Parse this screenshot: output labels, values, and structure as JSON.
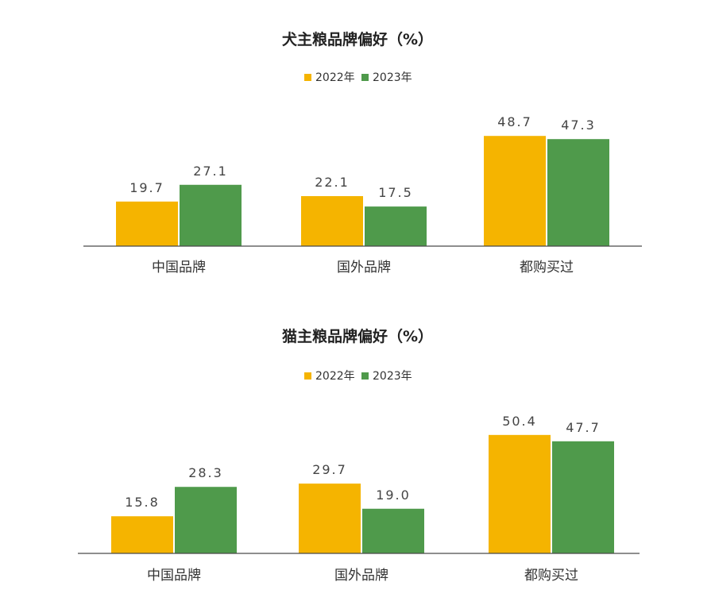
{
  "colors": {
    "y2022": "#f5b400",
    "y2023": "#4f9a4b"
  },
  "chart_data": [
    {
      "type": "bar",
      "title": "犬主粮品牌偏好（%）",
      "categories": [
        "中国品牌",
        "国外品牌",
        "都购买过"
      ],
      "series": [
        {
          "name": "2022年",
          "values": [
            19.7,
            22.1,
            48.7
          ]
        },
        {
          "name": "2023年",
          "values": [
            27.1,
            17.5,
            47.3
          ]
        }
      ],
      "value_labels": [
        [
          "19.7",
          "22.1",
          "48.7"
        ],
        [
          "27.1",
          "17.5",
          "47.3"
        ]
      ],
      "legend": "top-center",
      "grid": false,
      "ylim": [
        0,
        50
      ]
    },
    {
      "type": "bar",
      "title": "猫主粮品牌偏好（%）",
      "categories": [
        "中国品牌",
        "国外品牌",
        "都购买过"
      ],
      "series": [
        {
          "name": "2022年",
          "values": [
            15.8,
            29.7,
            50.4
          ]
        },
        {
          "name": "2023年",
          "values": [
            28.3,
            19.0,
            47.7
          ]
        }
      ],
      "value_labels": [
        [
          "15.8",
          "29.7",
          "50.4"
        ],
        [
          "28.3",
          "19.0",
          "47.7"
        ]
      ],
      "legend": "top-center",
      "grid": false,
      "ylim": [
        0,
        50
      ]
    }
  ]
}
